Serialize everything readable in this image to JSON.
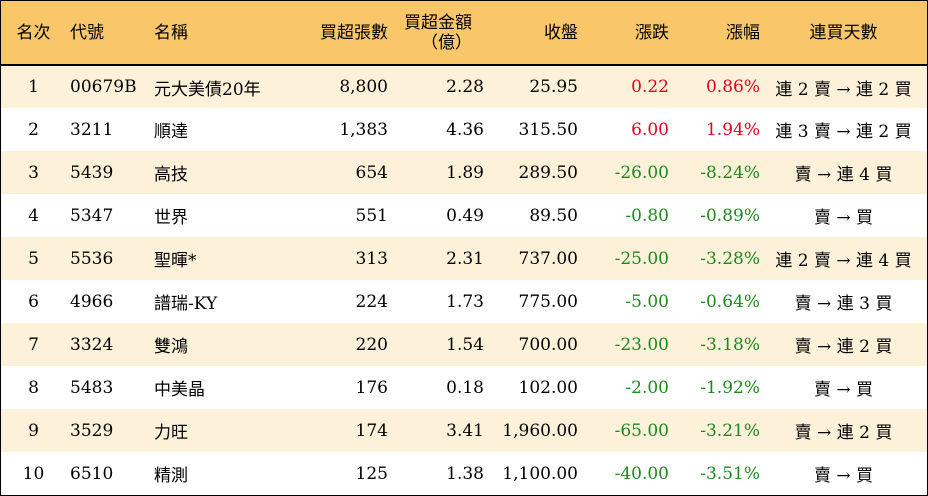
{
  "headers": {
    "rank": "名次",
    "code": "代號",
    "name": "名稱",
    "net_buy_lots": "買超張數",
    "net_buy_amount_line1": "買超金額",
    "net_buy_amount_line2": "（億）",
    "close": "收盤",
    "change": "漲跌",
    "change_pct": "漲幅",
    "consecutive_days": "連買天數"
  },
  "rows": [
    {
      "rank": "1",
      "code": "00679B",
      "name": "元大美債20年",
      "lots": "8,800",
      "amount": "2.28",
      "close": "25.95",
      "change": "0.22",
      "pct": "0.86%",
      "trend": "up",
      "streak": "連 2 賣 → 連 2 買"
    },
    {
      "rank": "2",
      "code": "3211",
      "name": "順達",
      "lots": "1,383",
      "amount": "4.36",
      "close": "315.50",
      "change": "6.00",
      "pct": "1.94%",
      "trend": "up",
      "streak": "連 3 賣 → 連 2 買"
    },
    {
      "rank": "3",
      "code": "5439",
      "name": "高技",
      "lots": "654",
      "amount": "1.89",
      "close": "289.50",
      "change": "-26.00",
      "pct": "-8.24%",
      "trend": "down",
      "streak": "賣 → 連 4 買"
    },
    {
      "rank": "4",
      "code": "5347",
      "name": "世界",
      "lots": "551",
      "amount": "0.49",
      "close": "89.50",
      "change": "-0.80",
      "pct": "-0.89%",
      "trend": "down",
      "streak": "賣 → 買"
    },
    {
      "rank": "5",
      "code": "5536",
      "name": "聖暉*",
      "lots": "313",
      "amount": "2.31",
      "close": "737.00",
      "change": "-25.00",
      "pct": "-3.28%",
      "trend": "down",
      "streak": "連 2 賣 → 連 4 買"
    },
    {
      "rank": "6",
      "code": "4966",
      "name": "譜瑞-KY",
      "lots": "224",
      "amount": "1.73",
      "close": "775.00",
      "change": "-5.00",
      "pct": "-0.64%",
      "trend": "down",
      "streak": "賣 → 連 3 買"
    },
    {
      "rank": "7",
      "code": "3324",
      "name": "雙鴻",
      "lots": "220",
      "amount": "1.54",
      "close": "700.00",
      "change": "-23.00",
      "pct": "-3.18%",
      "trend": "down",
      "streak": "賣 → 連 2 買"
    },
    {
      "rank": "8",
      "code": "5483",
      "name": "中美晶",
      "lots": "176",
      "amount": "0.18",
      "close": "102.00",
      "change": "-2.00",
      "pct": "-1.92%",
      "trend": "down",
      "streak": "賣 → 買"
    },
    {
      "rank": "9",
      "code": "3529",
      "name": "力旺",
      "lots": "174",
      "amount": "3.41",
      "close": "1,960.00",
      "change": "-65.00",
      "pct": "-3.21%",
      "trend": "down",
      "streak": "賣 → 連 2 買"
    },
    {
      "rank": "10",
      "code": "6510",
      "name": "精測",
      "lots": "125",
      "amount": "1.38",
      "close": "1,100.00",
      "change": "-40.00",
      "pct": "-3.51%",
      "trend": "down",
      "streak": "賣 → 買"
    }
  ],
  "colors": {
    "header_bg": "#f9c66a",
    "odd_row_bg": "#fdf1d9",
    "up": "#e1001e",
    "down": "#1b8a1b"
  }
}
